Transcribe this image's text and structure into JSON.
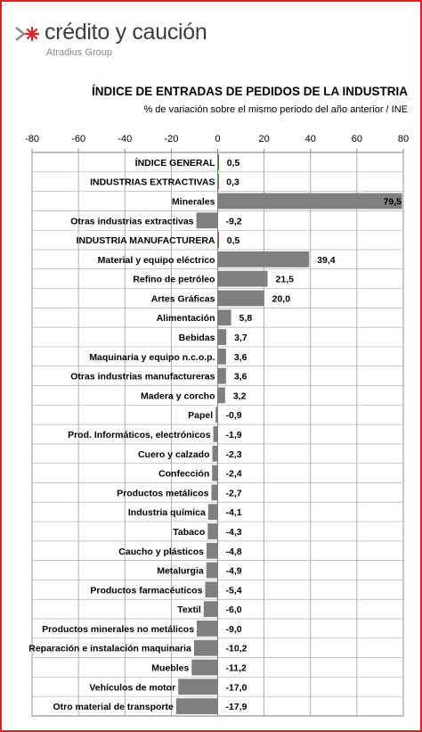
{
  "logo": {
    "brand": "crédito y caución",
    "group": "Atradius Group",
    "icon": "arrow-star-icon",
    "icon_color": "#e41e26"
  },
  "chart_data": {
    "type": "bar",
    "orientation": "horizontal",
    "title": "ÍNDICE DE ENTRADAS DE PEDIDOS DE LA INDUSTRIA",
    "subtitle": "% de variación sobre el mismo periodo del año anterior / INE",
    "xlim": [
      -80,
      80
    ],
    "xticks": [
      -80,
      -60,
      -40,
      -20,
      0,
      20,
      40,
      60,
      80
    ],
    "grid": true,
    "bar_color": "#7f7f7f",
    "highlight_color": "#c00000",
    "categories": [
      "ÍNDICE GENERAL",
      "INDUSTRIAS EXTRACTIVAS",
      "Minerales",
      "Otras industrias extractivas",
      "INDUSTRIA MANUFACTURERA",
      "Material y equipo eléctrico",
      "Refino de petróleo",
      "Artes Gráficas",
      "Alimentación",
      "Bebidas",
      "Maquinaria y equipo n.c.o.p.",
      "Otras industrias manufactureras",
      "Madera y corcho",
      "Papel",
      "Prod. Informáticos, electrónicos",
      "Cuero y calzado",
      "Confección",
      "Productos metálicos",
      "Industria química",
      "Tabaco",
      "Caucho y plásticos",
      "Metalurgia",
      "Productos farmacéuticos",
      "Textil",
      "Productos minerales no metálicos",
      "Reparación e instalación maquinaria",
      "Muebles",
      "Vehículos de motor",
      "Otro material de transporte"
    ],
    "values": [
      0.5,
      0.3,
      79.5,
      -9.2,
      0.5,
      39.4,
      21.5,
      20.0,
      5.8,
      3.7,
      3.6,
      3.6,
      3.2,
      -0.9,
      -1.9,
      -2.3,
      -2.4,
      -2.7,
      -4.1,
      -4.3,
      -4.8,
      -4.9,
      -5.4,
      -6.0,
      -9.0,
      -10.2,
      -11.2,
      -17.0,
      -17.9
    ],
    "value_labels": [
      "0,5",
      "0,3",
      "79,5",
      "-9,2",
      "0,5",
      "39,4",
      "21,5",
      "20,0",
      "5,8",
      "3,7",
      "3,6",
      "3,6",
      "3,2",
      "-0,9",
      "-1,9",
      "-2,3",
      "-2,4",
      "-2,7",
      "-4,1",
      "-4,3",
      "-4,8",
      "-4,9",
      "-5,4",
      "-6,0",
      "-9,0",
      "-10,2",
      "-11,2",
      "-17,0",
      "-17,9"
    ],
    "bold": [
      true,
      true,
      false,
      false,
      true,
      false,
      false,
      false,
      false,
      false,
      false,
      false,
      false,
      false,
      false,
      false,
      false,
      false,
      false,
      false,
      false,
      false,
      false,
      false,
      false,
      false,
      false,
      false,
      false
    ]
  }
}
